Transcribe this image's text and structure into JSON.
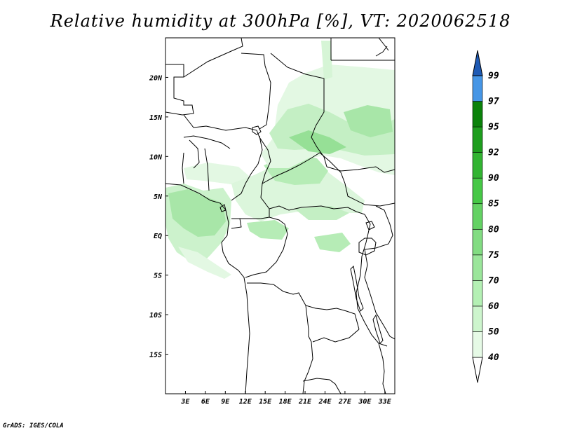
{
  "title": "Relative humidity at 300hPa [%], VT: 2020062518",
  "credit": "GrADS: IGES/COLA",
  "map": {
    "lon_range": [
      0,
      34.5
    ],
    "lat_range": [
      -20,
      25
    ],
    "x_ticks": [
      "3E",
      "6E",
      "9E",
      "12E",
      "15E",
      "18E",
      "21E",
      "24E",
      "27E",
      "30E",
      "33E"
    ],
    "y_ticks": [
      "20N",
      "15N",
      "10N",
      "5N",
      "EQ",
      "5S",
      "10S",
      "15S"
    ],
    "x_tick_values": [
      3,
      6,
      9,
      12,
      15,
      18,
      21,
      24,
      27,
      30,
      33
    ],
    "y_tick_values": [
      20,
      15,
      10,
      5,
      0,
      -5,
      -10,
      -15
    ]
  },
  "colorbar": {
    "levels": [
      "40",
      "50",
      "60",
      "70",
      "75",
      "80",
      "85",
      "90",
      "92",
      "95",
      "97",
      "99"
    ],
    "colors": [
      "#e6fae6",
      "#cdf5cd",
      "#b4f0b4",
      "#9be69b",
      "#82dc82",
      "#64d264",
      "#46c846",
      "#32b432",
      "#1e9e1e",
      "#0a820a",
      "#4696e6",
      "#2878d2",
      "#1e5ab4"
    ]
  }
}
